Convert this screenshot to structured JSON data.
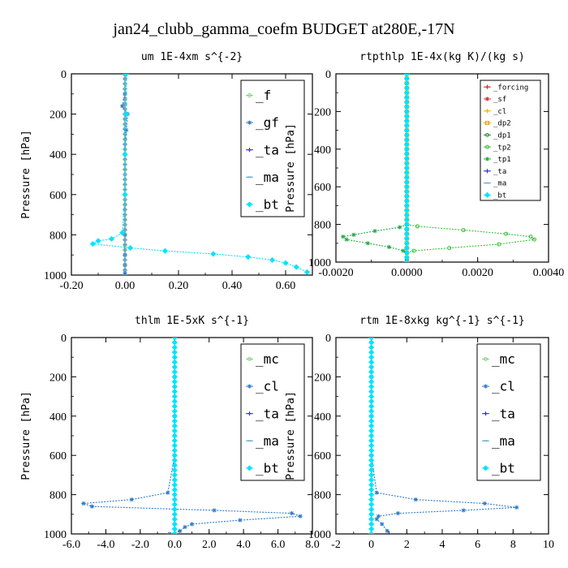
{
  "figure_title": "jan24_clubb_gamma_coefm  BUDGET at280E,-17N",
  "chart_data": [
    {
      "type": "line",
      "title": "um   1E-4xm s^{-2}",
      "ylabel": "Pressure [hPa]",
      "xlim": [
        -0.2,
        0.7
      ],
      "ylim": [
        1000,
        0
      ],
      "xticks": [
        -0.2,
        0.0,
        0.2,
        0.4,
        0.6
      ],
      "xtick_labels": [
        "-0.20",
        "0.00",
        "0.20",
        "0.40",
        "0.60"
      ],
      "yticks": [
        0,
        200,
        400,
        600,
        800,
        1000
      ],
      "ytick_labels": [
        "0",
        "200",
        "400",
        "600",
        "800",
        "1000"
      ],
      "legend": "top-right",
      "series": [
        {
          "name": "_f",
          "color": "#7ad67a",
          "marker": "circle",
          "x": [
            0,
            0,
            0,
            0,
            0,
            0,
            0,
            0,
            0,
            0,
            0
          ],
          "y": [
            0,
            100,
            200,
            300,
            400,
            500,
            600,
            700,
            800,
            900,
            990
          ]
        },
        {
          "name": "_gf",
          "color": "#2c79c9",
          "marker": "star",
          "x": [
            0,
            0,
            -0.01,
            0.01,
            0.005,
            0,
            0,
            0,
            0,
            0,
            0
          ],
          "y": [
            0,
            100,
            160,
            200,
            280,
            400,
            600,
            800,
            900,
            950,
            990
          ]
        },
        {
          "name": "_ta",
          "color": "#2c2cd6",
          "marker": "plus",
          "x": [
            0,
            0,
            0,
            0,
            0,
            0
          ],
          "y": [
            0,
            200,
            400,
            600,
            800,
            990
          ]
        },
        {
          "name": "_ma",
          "color": "#5aa0c8",
          "marker": "dash",
          "x": [
            0,
            0,
            0,
            0,
            0,
            0
          ],
          "y": [
            0,
            200,
            400,
            600,
            800,
            990
          ]
        },
        {
          "name": "_bt",
          "color": "#00e4ff",
          "marker": "diamond",
          "x": [
            0.005,
            0.005,
            0,
            0,
            -0.01,
            -0.05,
            -0.1,
            -0.12,
            0.02,
            0.15,
            0.33,
            0.46,
            0.55,
            0.6,
            0.64,
            0.68
          ],
          "y": [
            0,
            200,
            400,
            600,
            790,
            820,
            830,
            845,
            865,
            880,
            895,
            910,
            925,
            940,
            960,
            985
          ]
        }
      ]
    },
    {
      "type": "line",
      "title": "rtpthlp   1E-4x(kg K)/(kg s)",
      "ylabel": "Pressure [hPa]",
      "xlim": [
        -0.002,
        0.004
      ],
      "ylim": [
        1000,
        0
      ],
      "xticks": [
        -0.002,
        0.0,
        0.002,
        0.004
      ],
      "xtick_labels": [
        "-0.0020",
        "0.0000",
        "0.0020",
        "0.0040"
      ],
      "yticks": [
        0,
        200,
        400,
        600,
        800,
        1000
      ],
      "ytick_labels": [
        "0",
        "200",
        "400",
        "600",
        "800",
        "1000"
      ],
      "legend": "top-right",
      "series": [
        {
          "name": "_forcing",
          "color": "#d81c1c",
          "marker": "plus",
          "x": [
            0,
            0,
            0,
            0,
            0,
            0
          ],
          "y": [
            0,
            200,
            400,
            600,
            800,
            990
          ]
        },
        {
          "name": "_sf",
          "color": "#c83232",
          "marker": "star",
          "x": [
            0,
            0,
            0,
            0,
            0,
            0
          ],
          "y": [
            0,
            200,
            400,
            600,
            800,
            990
          ]
        },
        {
          "name": "_cl",
          "color": "#e8b400",
          "marker": "plus",
          "x": [
            0,
            0,
            0
          ],
          "y": [
            0,
            500,
            990
          ]
        },
        {
          "name": "_dp2",
          "color": "#e8a000",
          "marker": "square",
          "x": [
            0,
            0,
            0
          ],
          "y": [
            0,
            500,
            990
          ]
        },
        {
          "name": "_dp1",
          "color": "#2a8a2a",
          "marker": "circle",
          "x": [
            0,
            0,
            0
          ],
          "y": [
            0,
            500,
            990
          ]
        },
        {
          "name": "_tp2",
          "color": "#35c135",
          "marker": "circle",
          "x": [
            0,
            0.0003,
            0.0016,
            0.0028,
            0.0035,
            0.0036,
            0.0026,
            0.0012,
            0.0002,
            0,
            0
          ],
          "y": [
            800,
            810,
            830,
            850,
            865,
            880,
            905,
            925,
            940,
            950,
            990
          ]
        },
        {
          "name": "_tp1",
          "color": "#22aa44",
          "marker": "star",
          "x": [
            0,
            -0.0002,
            -0.0009,
            -0.0015,
            -0.0018,
            -0.0017,
            -0.0011,
            -0.0005,
            -0.0001,
            0,
            0
          ],
          "y": [
            800,
            815,
            835,
            855,
            865,
            880,
            900,
            920,
            940,
            950,
            990
          ]
        },
        {
          "name": "_ta",
          "color": "#2c2cd6",
          "marker": "plus",
          "x": [
            0,
            0,
            0,
            0
          ],
          "y": [
            0,
            500,
            880,
            990
          ]
        },
        {
          "name": "_ma",
          "color": "#5aa0c8",
          "marker": "dash",
          "x": [
            0,
            0,
            0
          ],
          "y": [
            0,
            500,
            990
          ]
        },
        {
          "name": "_bt",
          "color": "#00e4ff",
          "marker": "diamond",
          "x": [
            0,
            0,
            0
          ],
          "y": [
            0,
            500,
            990
          ]
        }
      ]
    },
    {
      "type": "line",
      "title": "thlm   1E-5xK s^{-1}",
      "ylabel": "Pressure [hPa]",
      "xlim": [
        -6,
        8
      ],
      "ylim": [
        1000,
        0
      ],
      "xticks": [
        -6,
        -4,
        -2,
        0,
        2,
        4,
        6,
        8
      ],
      "xtick_labels": [
        "-6.0",
        "-4.0",
        "-2.0",
        "0.0",
        "2.0",
        "4.0",
        "6.0",
        "8.0"
      ],
      "yticks": [
        0,
        200,
        400,
        600,
        800,
        1000
      ],
      "ytick_labels": [
        "0",
        "200",
        "400",
        "600",
        "800",
        "1000"
      ],
      "legend": "top-right",
      "series": [
        {
          "name": "_mc",
          "color": "#7ad67a",
          "marker": "circle",
          "x": [
            0,
            0,
            0,
            0,
            0,
            0,
            0,
            0,
            0,
            0,
            0
          ],
          "y": [
            0,
            100,
            200,
            300,
            400,
            500,
            600,
            700,
            800,
            900,
            990
          ]
        },
        {
          "name": "_cl",
          "color": "#2c79c9",
          "marker": "star",
          "x": [
            0,
            0,
            0,
            0,
            -0.4,
            -2.5,
            -5.3,
            -4.8,
            2.3,
            6.8,
            7.3,
            3.8,
            1.0,
            0.6,
            0.3,
            -0.3
          ],
          "y": [
            0,
            200,
            400,
            600,
            790,
            825,
            845,
            860,
            880,
            895,
            910,
            930,
            950,
            965,
            985,
            1000
          ]
        },
        {
          "name": "_ta",
          "color": "#2c2cd6",
          "marker": "plus",
          "x": [
            0,
            0,
            0,
            0,
            0,
            0
          ],
          "y": [
            0,
            200,
            400,
            600,
            800,
            990
          ]
        },
        {
          "name": "_ma",
          "color": "#5aa0c8",
          "marker": "dash",
          "x": [
            0,
            0,
            0,
            0,
            0,
            0
          ],
          "y": [
            0,
            200,
            400,
            600,
            800,
            990
          ]
        },
        {
          "name": "_bt",
          "color": "#00e4ff",
          "marker": "diamond",
          "x": [
            0,
            0,
            0,
            0,
            0,
            0
          ],
          "y": [
            0,
            200,
            400,
            600,
            800,
            990
          ]
        }
      ]
    },
    {
      "type": "line",
      "title": "rtm   1E-8xkg kg^{-1} s^{-1}",
      "ylabel": "Pressure [hPa]",
      "xlim": [
        -2,
        10
      ],
      "ylim": [
        1000,
        0
      ],
      "xticks": [
        -2,
        0,
        2,
        4,
        6,
        8,
        10
      ],
      "xtick_labels": [
        "-2",
        "0",
        "2",
        "4",
        "6",
        "8",
        "10"
      ],
      "yticks": [
        0,
        200,
        400,
        600,
        800,
        1000
      ],
      "ytick_labels": [
        "0",
        "200",
        "400",
        "600",
        "800",
        "1000"
      ],
      "legend": "top-right",
      "series": [
        {
          "name": "_mc",
          "color": "#7ad67a",
          "marker": "circle",
          "x": [
            0,
            0,
            0,
            0,
            0,
            0,
            0,
            0,
            0,
            0,
            0
          ],
          "y": [
            0,
            100,
            200,
            300,
            400,
            500,
            600,
            700,
            800,
            900,
            990
          ]
        },
        {
          "name": "_cl",
          "color": "#2c79c9",
          "marker": "star",
          "x": [
            0,
            0,
            0,
            0,
            0.3,
            2.5,
            6.4,
            8.2,
            5.2,
            1.5,
            0.4,
            0.3,
            0.6,
            0.9
          ],
          "y": [
            0,
            200,
            400,
            600,
            790,
            825,
            845,
            865,
            880,
            895,
            910,
            925,
            950,
            985
          ]
        },
        {
          "name": "_ta",
          "color": "#2c2cd6",
          "marker": "plus",
          "x": [
            0,
            0,
            0,
            0,
            0,
            0
          ],
          "y": [
            0,
            200,
            400,
            600,
            800,
            990
          ]
        },
        {
          "name": "_ma",
          "color": "#5aa0c8",
          "marker": "dash",
          "x": [
            0,
            0,
            0,
            0,
            0,
            0
          ],
          "y": [
            0,
            200,
            400,
            600,
            800,
            990
          ]
        },
        {
          "name": "_bt",
          "color": "#00e4ff",
          "marker": "diamond",
          "x": [
            0,
            0,
            0,
            0,
            0,
            0
          ],
          "y": [
            0,
            200,
            400,
            600,
            800,
            990
          ]
        }
      ]
    }
  ]
}
